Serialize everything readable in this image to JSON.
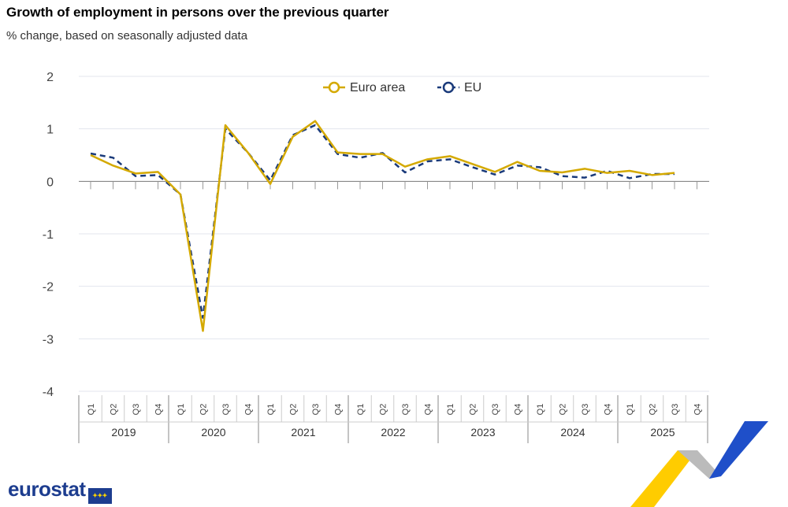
{
  "chart_data": {
    "type": "line",
    "title": "Growth of employment in persons over the previous quarter",
    "subtitle": "% change, based on seasonally adjusted data",
    "years": [
      "2019",
      "2020",
      "2021",
      "2022",
      "2023",
      "2024",
      "2025"
    ],
    "quarters": [
      "Q1",
      "Q2",
      "Q3",
      "Q4"
    ],
    "ylim": [
      -4,
      2
    ],
    "yticks": [
      "2",
      "1",
      "0",
      "-1",
      "-2",
      "-3",
      "-4"
    ],
    "grid": true,
    "legend_placement": "top-center",
    "series": [
      {
        "name": "Euro area",
        "color": "#d4a900",
        "style": "solid",
        "values": [
          0.5,
          0.3,
          0.15,
          0.18,
          -0.25,
          -2.85,
          1.07,
          0.55,
          -0.05,
          0.85,
          1.15,
          0.55,
          0.52,
          0.52,
          0.28,
          0.42,
          0.48,
          0.33,
          0.18,
          0.37,
          0.2,
          0.17,
          0.24,
          0.16,
          0.2,
          0.12,
          0.16
        ]
      },
      {
        "name": "EU",
        "color": "#1a3a7a",
        "style": "dashed",
        "values": [
          0.53,
          0.45,
          0.1,
          0.12,
          -0.25,
          -2.6,
          1.0,
          0.55,
          0.02,
          0.88,
          1.07,
          0.52,
          0.45,
          0.54,
          0.17,
          0.38,
          0.42,
          0.27,
          0.13,
          0.3,
          0.27,
          0.1,
          0.07,
          0.2,
          0.06,
          0.14,
          0.14
        ]
      }
    ]
  },
  "branding": {
    "logo": "eurostat"
  }
}
